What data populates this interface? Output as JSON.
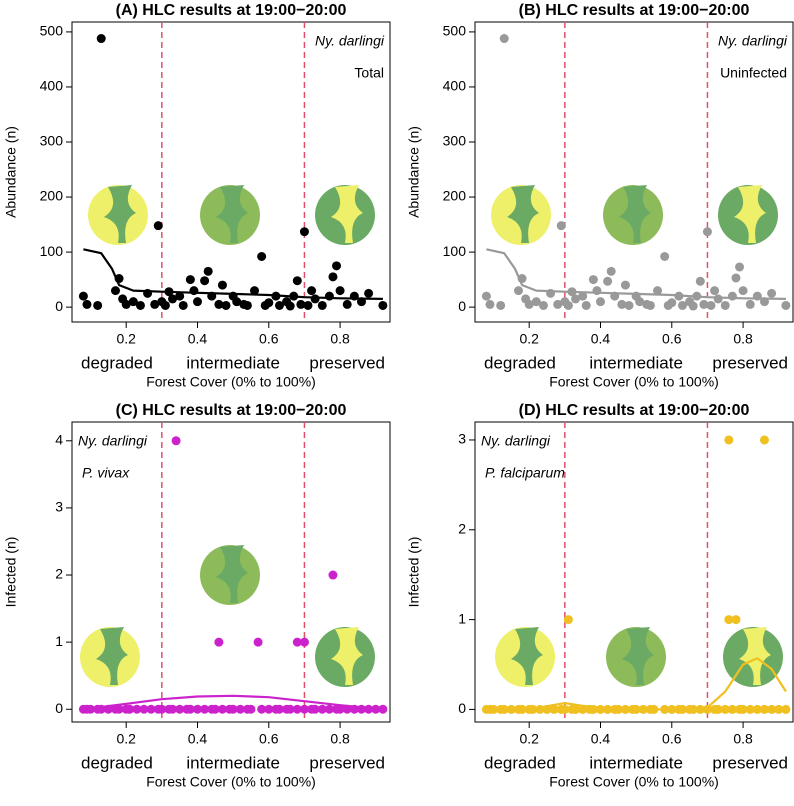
{
  "chart_data": [
    {
      "type": "scatter",
      "title": "(A) HLC results at 19:00−20:00",
      "xlabel": "Forest Cover (0% to 100%)",
      "ylabel": "Abundance (n)",
      "annotations": [
        "Ny. darlingi",
        "Total"
      ],
      "annotation_corner": "top-right",
      "zones": [
        "degraded",
        "intermediate",
        "preserved"
      ],
      "vlines": [
        0.3,
        0.7
      ],
      "vline_color": "#e0506a",
      "xlim": [
        0.048,
        0.94
      ],
      "ylim": [
        -27,
        518
      ],
      "xticks": [
        0.2,
        0.4,
        0.6,
        0.8
      ],
      "yticks": [
        0,
        100,
        200,
        300,
        400,
        500
      ],
      "points": {
        "color": "#000000",
        "x": [
          0.08,
          0.09,
          0.12,
          0.13,
          0.17,
          0.18,
          0.19,
          0.2,
          0.22,
          0.24,
          0.26,
          0.28,
          0.29,
          0.3,
          0.31,
          0.32,
          0.33,
          0.35,
          0.36,
          0.38,
          0.39,
          0.4,
          0.42,
          0.43,
          0.44,
          0.46,
          0.47,
          0.48,
          0.5,
          0.51,
          0.53,
          0.54,
          0.56,
          0.58,
          0.59,
          0.6,
          0.62,
          0.63,
          0.65,
          0.66,
          0.67,
          0.68,
          0.69,
          0.7,
          0.71,
          0.72,
          0.73,
          0.75,
          0.77,
          0.78,
          0.79,
          0.8,
          0.82,
          0.84,
          0.86,
          0.88,
          0.92
        ],
        "y": [
          20,
          5,
          3,
          488,
          30,
          52,
          15,
          5,
          10,
          3,
          25,
          5,
          148,
          10,
          3,
          28,
          15,
          20,
          3,
          50,
          30,
          10,
          48,
          65,
          20,
          5,
          40,
          3,
          20,
          10,
          5,
          3,
          30,
          92,
          3,
          8,
          20,
          3,
          10,
          2,
          20,
          48,
          5,
          137,
          3,
          30,
          15,
          3,
          20,
          55,
          75,
          30,
          5,
          20,
          10,
          25,
          3
        ]
      },
      "smooth": {
        "color": "#000000",
        "x": [
          0.08,
          0.13,
          0.16,
          0.18,
          0.22,
          0.3,
          0.4,
          0.5,
          0.6,
          0.7,
          0.8,
          0.92
        ],
        "y": [
          105,
          98,
          70,
          40,
          30,
          28,
          26,
          24,
          22,
          18,
          16,
          15
        ]
      }
    },
    {
      "type": "scatter",
      "title": "(B) HLC results at 19:00−20:00",
      "xlabel": "Forest Cover (0% to 100%)",
      "ylabel": "Abundance (n)",
      "annotations": [
        "Ny. darlingi",
        "Uninfected"
      ],
      "annotation_corner": "top-right",
      "zones": [
        "degraded",
        "intermediate",
        "preserved"
      ],
      "vlines": [
        0.3,
        0.7
      ],
      "vline_color": "#e0506a",
      "xlim": [
        0.048,
        0.94
      ],
      "ylim": [
        -27,
        518
      ],
      "xticks": [
        0.2,
        0.4,
        0.6,
        0.8
      ],
      "yticks": [
        0,
        100,
        200,
        300,
        400,
        500
      ],
      "points": {
        "color": "#999999",
        "x": [
          0.08,
          0.09,
          0.12,
          0.13,
          0.17,
          0.18,
          0.19,
          0.2,
          0.22,
          0.24,
          0.26,
          0.28,
          0.29,
          0.3,
          0.31,
          0.32,
          0.33,
          0.35,
          0.36,
          0.38,
          0.39,
          0.4,
          0.42,
          0.43,
          0.44,
          0.46,
          0.47,
          0.48,
          0.5,
          0.51,
          0.53,
          0.54,
          0.56,
          0.58,
          0.59,
          0.6,
          0.62,
          0.63,
          0.65,
          0.66,
          0.67,
          0.68,
          0.69,
          0.7,
          0.71,
          0.72,
          0.73,
          0.75,
          0.77,
          0.78,
          0.79,
          0.8,
          0.82,
          0.84,
          0.86,
          0.88,
          0.92
        ],
        "y": [
          20,
          5,
          3,
          488,
          30,
          52,
          15,
          5,
          10,
          3,
          25,
          5,
          148,
          10,
          3,
          28,
          15,
          20,
          3,
          50,
          30,
          10,
          47,
          65,
          20,
          5,
          40,
          3,
          20,
          10,
          5,
          3,
          30,
          92,
          3,
          8,
          20,
          3,
          10,
          2,
          20,
          47,
          5,
          137,
          3,
          30,
          15,
          3,
          20,
          53,
          73,
          30,
          5,
          20,
          10,
          25,
          3
        ]
      },
      "smooth": {
        "color": "#999999",
        "x": [
          0.08,
          0.13,
          0.16,
          0.18,
          0.22,
          0.3,
          0.4,
          0.5,
          0.6,
          0.7,
          0.8,
          0.92
        ],
        "y": [
          105,
          98,
          70,
          40,
          30,
          28,
          26,
          24,
          22,
          18,
          16,
          15
        ]
      }
    },
    {
      "type": "scatter",
      "title": "(C) HLC results at 19:00−20:00",
      "xlabel": "Forest Cover (0% to 100%)",
      "ylabel": "Infected (n)",
      "annotations": [
        "Ny. darlingi",
        "P. vivax"
      ],
      "annotation_corner": "top-left",
      "zones": [
        "degraded",
        "intermediate",
        "preserved"
      ],
      "vlines": [
        0.3,
        0.7
      ],
      "vline_color": "#e0506a",
      "xlim": [
        0.048,
        0.94
      ],
      "ylim": [
        -0.19,
        4.28
      ],
      "xticks": [
        0.2,
        0.4,
        0.6,
        0.8
      ],
      "yticks": [
        0,
        1,
        2,
        3,
        4
      ],
      "points": {
        "color": "#cc22cc",
        "x": [
          0.08,
          0.09,
          0.1,
          0.12,
          0.13,
          0.15,
          0.17,
          0.18,
          0.2,
          0.21,
          0.23,
          0.25,
          0.27,
          0.29,
          0.3,
          0.32,
          0.33,
          0.35,
          0.37,
          0.38,
          0.4,
          0.42,
          0.44,
          0.45,
          0.47,
          0.49,
          0.5,
          0.52,
          0.54,
          0.55,
          0.58,
          0.6,
          0.62,
          0.63,
          0.65,
          0.66,
          0.68,
          0.7,
          0.72,
          0.73,
          0.75,
          0.77,
          0.79,
          0.8,
          0.82,
          0.84,
          0.86,
          0.88,
          0.9,
          0.92,
          0.34,
          0.46,
          0.57,
          0.68,
          0.7,
          0.78
        ],
        "y": [
          0,
          0,
          0,
          0,
          0,
          0,
          0,
          0,
          0,
          0,
          0,
          0,
          0,
          0,
          0,
          0,
          0,
          0,
          0,
          0,
          0,
          0,
          0,
          0,
          0,
          0,
          0,
          0,
          0,
          0,
          0,
          0,
          0,
          0,
          0,
          0,
          0,
          0,
          0,
          0,
          0,
          0,
          0,
          0,
          0,
          0,
          0,
          0,
          0,
          0,
          4,
          1,
          1,
          1,
          1,
          2
        ]
      },
      "smooth": {
        "color": "#cc22cc",
        "x": [
          0.08,
          0.2,
          0.3,
          0.4,
          0.5,
          0.6,
          0.7,
          0.8,
          0.92
        ],
        "y": [
          0,
          0.08,
          0.15,
          0.19,
          0.2,
          0.18,
          0.12,
          0.06,
          0
        ]
      }
    },
    {
      "type": "scatter",
      "title": "(D) HLC results at 19:00−20:00",
      "xlabel": "Forest Cover (0% to 100%)",
      "ylabel": "Infected (n)",
      "annotations": [
        "Ny. darlingi",
        "P. falciparum"
      ],
      "annotation_corner": "top-left",
      "zones": [
        "degraded",
        "intermediate",
        "preserved"
      ],
      "vlines": [
        0.3,
        0.7
      ],
      "vline_color": "#e0506a",
      "xlim": [
        0.048,
        0.94
      ],
      "ylim": [
        -0.14,
        3.2
      ],
      "xticks": [
        0.2,
        0.4,
        0.6,
        0.8
      ],
      "yticks": [
        0,
        1,
        2,
        3
      ],
      "points": {
        "color": "#f0c020",
        "x": [
          0.08,
          0.09,
          0.1,
          0.12,
          0.13,
          0.15,
          0.17,
          0.18,
          0.2,
          0.21,
          0.23,
          0.25,
          0.27,
          0.29,
          0.3,
          0.32,
          0.33,
          0.35,
          0.37,
          0.38,
          0.4,
          0.42,
          0.44,
          0.45,
          0.47,
          0.49,
          0.5,
          0.52,
          0.54,
          0.55,
          0.58,
          0.6,
          0.62,
          0.63,
          0.65,
          0.66,
          0.68,
          0.7,
          0.72,
          0.73,
          0.75,
          0.77,
          0.79,
          0.8,
          0.82,
          0.84,
          0.86,
          0.88,
          0.9,
          0.92,
          0.31,
          0.76,
          0.86,
          0.76,
          0.78
        ],
        "y": [
          0,
          0,
          0,
          0,
          0,
          0,
          0,
          0,
          0,
          0,
          0,
          0,
          0,
          0,
          0,
          0,
          0,
          0,
          0,
          0,
          0,
          0,
          0,
          0,
          0,
          0,
          0,
          0,
          0,
          0,
          0,
          0,
          0,
          0,
          0,
          0,
          0,
          0,
          0,
          0,
          0,
          0,
          0,
          0,
          0,
          0,
          0,
          0,
          0,
          0,
          1,
          3,
          3,
          1,
          1
        ]
      },
      "smooth": {
        "color": "#f0c020",
        "x": [
          0.08,
          0.2,
          0.27,
          0.3,
          0.35,
          0.45,
          0.6,
          0.7,
          0.75,
          0.8,
          0.84,
          0.88,
          0.92
        ],
        "y": [
          0,
          0,
          0.05,
          0.07,
          0.04,
          0,
          0,
          0.02,
          0.2,
          0.5,
          0.57,
          0.45,
          0.2
        ]
      }
    }
  ]
}
